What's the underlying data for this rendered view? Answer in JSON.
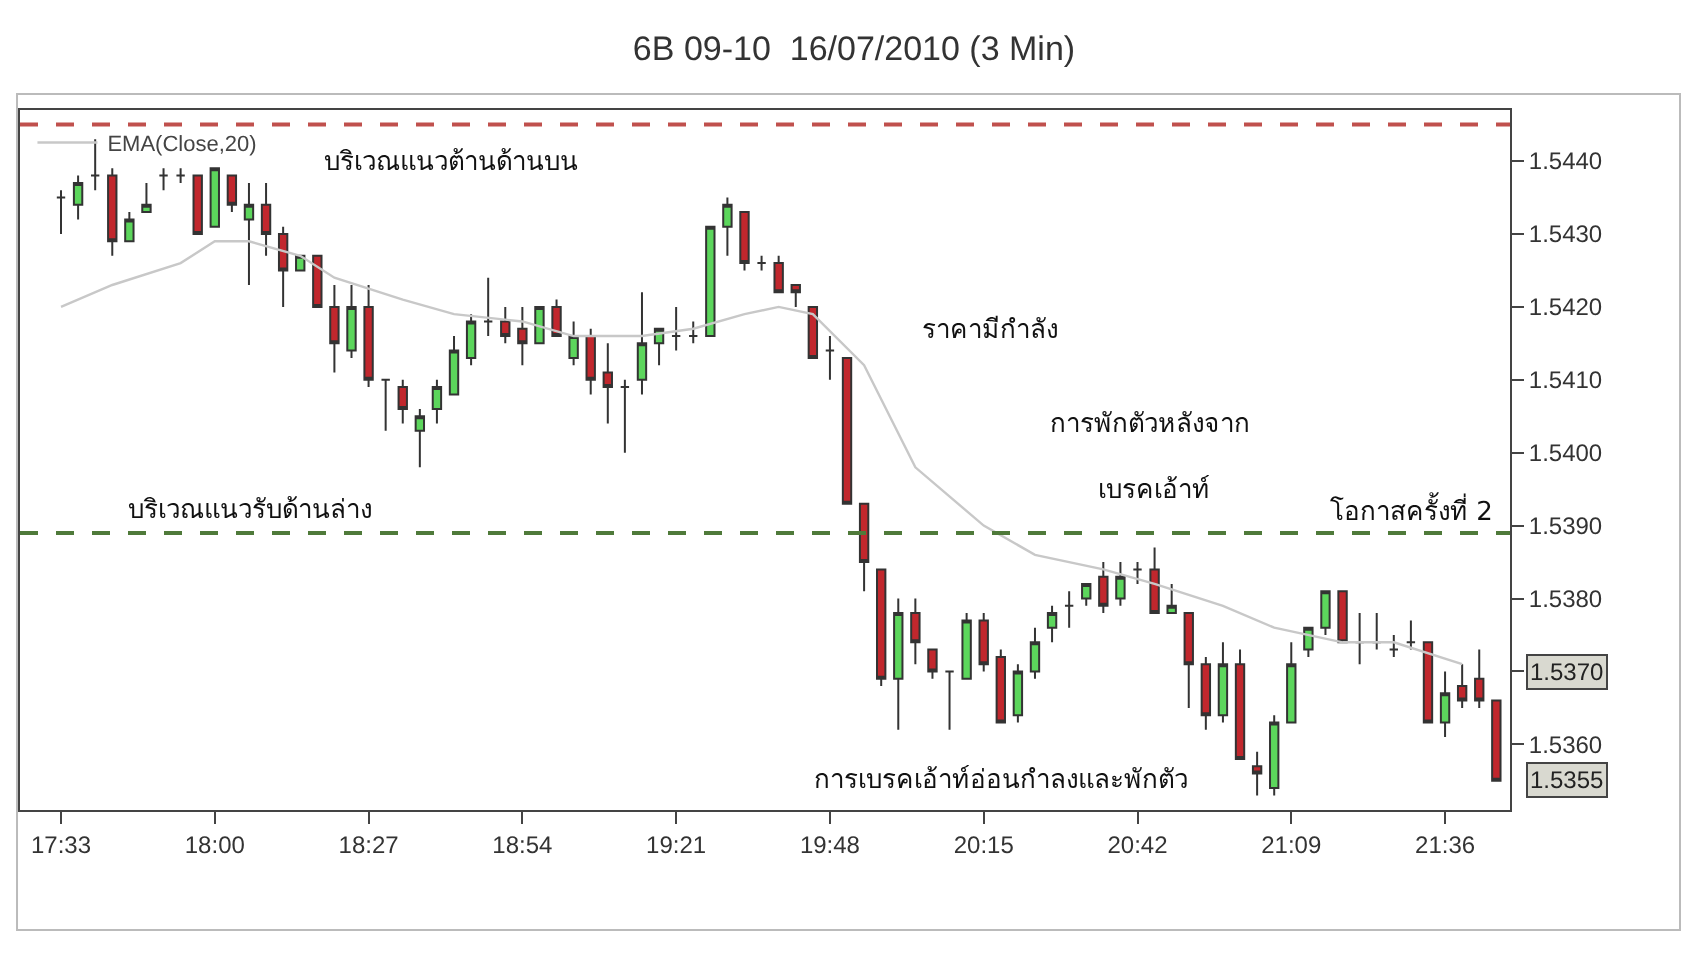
{
  "chart_data": {
    "type": "candlestick",
    "title": "6B 09-10  16/07/2010 (3 Min)",
    "x": [
      17.55,
      17.6,
      17.65,
      17.7,
      17.75,
      17.8,
      17.85,
      17.9,
      17.95,
      18.0,
      18.05,
      18.1,
      18.15,
      18.2,
      18.25,
      18.3,
      18.35,
      18.4,
      18.45,
      18.5,
      18.55,
      18.6,
      18.65,
      18.7,
      18.75,
      18.8,
      18.85,
      18.9,
      18.95,
      19.0,
      19.05,
      19.1,
      19.15,
      19.2,
      19.25,
      19.3,
      19.35,
      19.4,
      19.45,
      19.5,
      19.55,
      19.6,
      19.65,
      19.7,
      19.75,
      19.8,
      19.85,
      19.9,
      19.95,
      20.0,
      20.05,
      20.1,
      20.15,
      20.2,
      20.25,
      20.3,
      20.35,
      20.4,
      20.45,
      20.5,
      20.55,
      20.6,
      20.65,
      20.7,
      20.75,
      20.8,
      20.85,
      20.9,
      20.95,
      21.0,
      21.05,
      21.1,
      21.15,
      21.2,
      21.25,
      21.3,
      21.35,
      21.4,
      21.45,
      21.5,
      21.55,
      21.6,
      21.65,
      21.7,
      21.75
    ],
    "ohlc": [
      [
        1.5435,
        1.5436,
        1.543,
        1.5435
      ],
      [
        1.5434,
        1.5438,
        1.5432,
        1.5437
      ],
      [
        1.5438,
        1.5443,
        1.5436,
        1.5438
      ],
      [
        1.5438,
        1.5439,
        1.5427,
        1.5429
      ],
      [
        1.5429,
        1.5433,
        1.5429,
        1.5432
      ],
      [
        1.5433,
        1.5437,
        1.5433,
        1.5434
      ],
      [
        1.5438,
        1.5439,
        1.5436,
        1.5438
      ],
      [
        1.5438,
        1.5439,
        1.5437,
        1.5438
      ],
      [
        1.5438,
        1.5438,
        1.543,
        1.543
      ],
      [
        1.5431,
        1.5439,
        1.5431,
        1.5439
      ],
      [
        1.5438,
        1.5438,
        1.5433,
        1.5434
      ],
      [
        1.5432,
        1.5437,
        1.5423,
        1.5434
      ],
      [
        1.5434,
        1.5437,
        1.5427,
        1.543
      ],
      [
        1.543,
        1.5431,
        1.542,
        1.5425
      ],
      [
        1.5425,
        1.5427,
        1.5425,
        1.5427
      ],
      [
        1.5427,
        1.5427,
        1.542,
        1.542
      ],
      [
        1.542,
        1.5423,
        1.5411,
        1.5415
      ],
      [
        1.5414,
        1.5423,
        1.5413,
        1.542
      ],
      [
        1.542,
        1.5423,
        1.5409,
        1.541
      ],
      [
        1.541,
        1.541,
        1.5403,
        1.541
      ],
      [
        1.5409,
        1.541,
        1.5404,
        1.5406
      ],
      [
        1.5403,
        1.5406,
        1.5398,
        1.5405
      ],
      [
        1.5406,
        1.541,
        1.5404,
        1.5409
      ],
      [
        1.5408,
        1.5416,
        1.5408,
        1.5414
      ],
      [
        1.5413,
        1.5419,
        1.5412,
        1.5418
      ],
      [
        1.5418,
        1.5424,
        1.5416,
        1.5418
      ],
      [
        1.5418,
        1.542,
        1.5415,
        1.5416
      ],
      [
        1.5417,
        1.542,
        1.5412,
        1.5415
      ],
      [
        1.5415,
        1.542,
        1.5415,
        1.542
      ],
      [
        1.542,
        1.5421,
        1.5416,
        1.5416
      ],
      [
        1.5413,
        1.5418,
        1.5412,
        1.5416
      ],
      [
        1.5416,
        1.5417,
        1.5408,
        1.541
      ],
      [
        1.5411,
        1.5415,
        1.5404,
        1.5409
      ],
      [
        1.5409,
        1.541,
        1.54,
        1.5409
      ],
      [
        1.541,
        1.5422,
        1.5408,
        1.5415
      ],
      [
        1.5415,
        1.5417,
        1.5412,
        1.5417
      ],
      [
        1.5416,
        1.542,
        1.5414,
        1.5416
      ],
      [
        1.5416,
        1.5418,
        1.5415,
        1.5416
      ],
      [
        1.5416,
        1.5431,
        1.5416,
        1.5431
      ],
      [
        1.5431,
        1.5435,
        1.5427,
        1.5434
      ],
      [
        1.5433,
        1.5433,
        1.5425,
        1.5426
      ],
      [
        1.5426,
        1.5427,
        1.5425,
        1.5426
      ],
      [
        1.5426,
        1.5427,
        1.5422,
        1.5422
      ],
      [
        1.5423,
        1.5423,
        1.542,
        1.5422
      ],
      [
        1.542,
        1.542,
        1.5413,
        1.5413
      ],
      [
        1.5414,
        1.5416,
        1.541,
        1.5414
      ],
      [
        1.5413,
        1.5413,
        1.5393,
        1.5393
      ],
      [
        1.5393,
        1.5393,
        1.5381,
        1.5385
      ],
      [
        1.5384,
        1.5384,
        1.5368,
        1.5369
      ],
      [
        1.5369,
        1.538,
        1.5362,
        1.5378
      ],
      [
        1.5378,
        1.538,
        1.5371,
        1.5374
      ],
      [
        1.5373,
        1.5373,
        1.5369,
        1.537
      ],
      [
        1.537,
        1.537,
        1.5362,
        1.537
      ],
      [
        1.5369,
        1.5378,
        1.5369,
        1.5377
      ],
      [
        1.5377,
        1.5378,
        1.537,
        1.5371
      ],
      [
        1.5372,
        1.5373,
        1.5363,
        1.5363
      ],
      [
        1.5364,
        1.5371,
        1.5363,
        1.537
      ],
      [
        1.537,
        1.5376,
        1.5369,
        1.5374
      ],
      [
        1.5376,
        1.5379,
        1.5374,
        1.5378
      ],
      [
        1.5379,
        1.5381,
        1.5376,
        1.5379
      ],
      [
        1.538,
        1.5382,
        1.5379,
        1.5382
      ],
      [
        1.5383,
        1.5385,
        1.5378,
        1.5379
      ],
      [
        1.538,
        1.5385,
        1.5379,
        1.5383
      ],
      [
        1.5384,
        1.5385,
        1.5382,
        1.5384
      ],
      [
        1.5384,
        1.5387,
        1.5378,
        1.5378
      ],
      [
        1.5378,
        1.5382,
        1.5378,
        1.5379
      ],
      [
        1.5378,
        1.5378,
        1.5365,
        1.5371
      ],
      [
        1.5371,
        1.5372,
        1.5362,
        1.5364
      ],
      [
        1.5364,
        1.5374,
        1.5363,
        1.5371
      ],
      [
        1.5371,
        1.5373,
        1.5358,
        1.5358
      ],
      [
        1.5357,
        1.5359,
        1.5353,
        1.5356
      ],
      [
        1.5354,
        1.5364,
        1.5353,
        1.5363
      ],
      [
        1.5363,
        1.5374,
        1.5363,
        1.5371
      ],
      [
        1.5373,
        1.5376,
        1.5372,
        1.5376
      ],
      [
        1.5376,
        1.5381,
        1.5375,
        1.5381
      ],
      [
        1.5381,
        1.5381,
        1.5374,
        1.5374
      ],
      [
        1.5374,
        1.5378,
        1.5371,
        1.5374
      ],
      [
        1.5374,
        1.5378,
        1.5373,
        1.5374
      ],
      [
        1.5373,
        1.5375,
        1.5372,
        1.5373
      ],
      [
        1.5374,
        1.5377,
        1.5373,
        1.5374
      ],
      [
        1.5374,
        1.5374,
        1.5363,
        1.5363
      ],
      [
        1.5363,
        1.537,
        1.5361,
        1.5367
      ],
      [
        1.5368,
        1.5371,
        1.5365,
        1.5366
      ],
      [
        1.5369,
        1.5373,
        1.5365,
        1.5366
      ],
      [
        1.5366,
        1.5366,
        1.5355,
        1.5355
      ]
    ],
    "colors": [
      "#333333",
      "#5cd65c",
      "#333333",
      "#c1272d",
      "#5cd65c",
      "#5cd65c",
      "#333333",
      "#333333",
      "#c1272d",
      "#5cd65c",
      "#c1272d",
      "#5cd65c",
      "#c1272d",
      "#c1272d",
      "#5cd65c",
      "#c1272d",
      "#c1272d",
      "#5cd65c",
      "#c1272d",
      "#333333",
      "#c1272d",
      "#5cd65c",
      "#5cd65c",
      "#5cd65c",
      "#5cd65c",
      "#333333",
      "#c1272d",
      "#c1272d",
      "#5cd65c",
      "#c1272d",
      "#5cd65c",
      "#c1272d",
      "#c1272d",
      "#333333",
      "#5cd65c",
      "#5cd65c",
      "#333333",
      "#333333",
      "#5cd65c",
      "#5cd65c",
      "#c1272d",
      "#333333",
      "#c1272d",
      "#c1272d",
      "#c1272d",
      "#333333",
      "#c1272d",
      "#c1272d",
      "#c1272d",
      "#5cd65c",
      "#c1272d",
      "#c1272d",
      "#333333",
      "#5cd65c",
      "#c1272d",
      "#c1272d",
      "#5cd65c",
      "#5cd65c",
      "#5cd65c",
      "#333333",
      "#5cd65c",
      "#c1272d",
      "#5cd65c",
      "#333333",
      "#c1272d",
      "#5cd65c",
      "#c1272d",
      "#c1272d",
      "#5cd65c",
      "#c1272d",
      "#c1272d",
      "#5cd65c",
      "#5cd65c",
      "#5cd65c",
      "#5cd65c",
      "#c1272d",
      "#333333",
      "#333333",
      "#333333",
      "#333333",
      "#c1272d",
      "#5cd65c",
      "#c1272d",
      "#c1272d",
      "#c1272d"
    ],
    "series": [
      {
        "name": "EMA(Close,20)",
        "type": "line",
        "color": "#c8c8c8",
        "x": [
          17.55,
          17.7,
          17.9,
          18.0,
          18.1,
          18.25,
          18.35,
          18.55,
          18.7,
          18.9,
          19.05,
          19.25,
          19.4,
          19.55,
          19.65,
          19.75,
          19.9,
          20.05,
          20.25,
          20.4,
          20.6,
          20.75,
          20.95,
          21.1,
          21.3,
          21.45,
          21.65
        ],
        "values": [
          1.542,
          1.5423,
          1.5426,
          1.5429,
          1.5429,
          1.5427,
          1.5424,
          1.5421,
          1.5419,
          1.5418,
          1.5416,
          1.5416,
          1.5417,
          1.5419,
          1.542,
          1.5419,
          1.5412,
          1.5398,
          1.539,
          1.5386,
          1.5384,
          1.5382,
          1.5379,
          1.5376,
          1.5374,
          1.5374,
          1.5371
        ]
      }
    ],
    "xlim": [
      17.43,
      21.79
    ],
    "xticks": [
      {
        "value": 17.55,
        "label": "17:33"
      },
      {
        "value": 18.0,
        "label": "18:00"
      },
      {
        "value": 18.45,
        "label": "18:27"
      },
      {
        "value": 18.9,
        "label": "18:54"
      },
      {
        "value": 19.35,
        "label": "19:21"
      },
      {
        "value": 19.8,
        "label": "19:48"
      },
      {
        "value": 20.25,
        "label": "20:15"
      },
      {
        "value": 20.7,
        "label": "20:42"
      },
      {
        "value": 21.15,
        "label": "21:09"
      },
      {
        "value": 21.6,
        "label": "21:36"
      }
    ],
    "ylim": [
      1.5351,
      1.5447
    ],
    "yticks": [
      {
        "value": 1.536,
        "label": "1.5360"
      },
      {
        "value": 1.537,
        "label": null
      },
      {
        "value": 1.538,
        "label": "1.5380"
      },
      {
        "value": 1.539,
        "label": "1.5390"
      },
      {
        "value": 1.54,
        "label": "1.5400"
      },
      {
        "value": 1.541,
        "label": "1.5410"
      },
      {
        "value": 1.542,
        "label": "1.5420"
      },
      {
        "value": 1.543,
        "label": "1.5430"
      },
      {
        "value": 1.544,
        "label": "1.5440"
      }
    ],
    "ref_lines": [
      {
        "axis": "y",
        "value": 1.5445,
        "color": "#c0504d",
        "line_style": "dashed"
      },
      {
        "axis": "y",
        "value": 1.5389,
        "color": "#4f7a3a",
        "line_style": "dashed"
      }
    ],
    "annotations": [
      "บริเวณแนวต้านด้านบน",
      "ราคามีกำลัง",
      "การพักตัวหลังจาก",
      "เบรคเอ้าท์",
      "โอกาสครั้งที่ 2",
      "บริเวณแนวรับด้านล่าง",
      "การเบรคเอ้าท์อ่อนกำลงและพักตัว",
      "1.5370",
      "1.5355"
    ],
    "legend": "top left"
  }
}
